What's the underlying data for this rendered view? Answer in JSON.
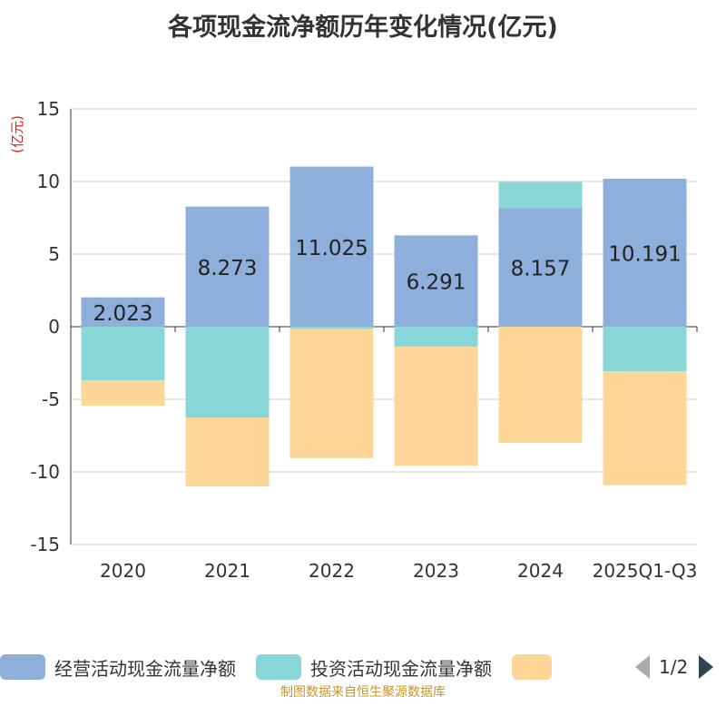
{
  "chart_data": {
    "type": "bar",
    "stacked": true,
    "title": "各项现金流净额历年变化情况(亿元)",
    "ylabel": "(亿元)",
    "xlabel": "",
    "ylim": [
      -15,
      15
    ],
    "yticks": [
      15,
      10,
      5,
      0,
      -5,
      -10,
      -15
    ],
    "categories": [
      "2020",
      "2021",
      "2022",
      "2023",
      "2024",
      "2025Q1-Q3"
    ],
    "series": [
      {
        "name": "经营活动现金流量净额",
        "color": "#8eaedb",
        "values": [
          2.023,
          8.273,
          11.025,
          6.291,
          8.157,
          10.191
        ],
        "labels": [
          "2.023",
          "8.273",
          "11.025",
          "6.291",
          "8.157",
          "10.191"
        ]
      },
      {
        "name": "投资活动现金流量净额",
        "color": "#88d6d8",
        "values": [
          -3.69,
          -6.25,
          -0.15,
          -1.38,
          1.81,
          -3.06
        ]
      },
      {
        "name": "",
        "color": "#fed798",
        "values": [
          -1.75,
          -4.75,
          -8.9,
          -8.2,
          -8.0,
          -7.85
        ]
      }
    ],
    "legend": {
      "position": "bottom",
      "page": "1/2"
    }
  },
  "footer": "制图数据来自恒生聚源数据库"
}
